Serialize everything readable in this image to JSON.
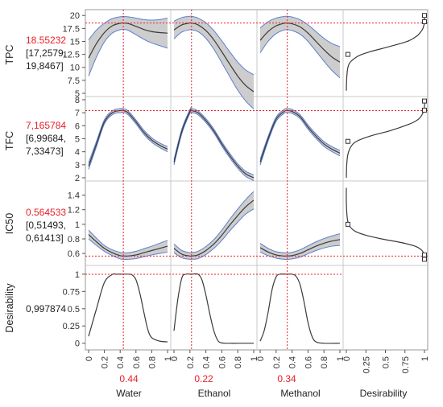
{
  "chart_data": {
    "type": "line",
    "title": "",
    "factors": [
      {
        "name": "Water",
        "value": "0.44",
        "current": 0.44
      },
      {
        "name": "Ethanol",
        "value": "0.22",
        "current": 0.22
      },
      {
        "name": "Methanol",
        "value": "0.34",
        "current": 0.34
      }
    ],
    "desirability_label": "Desirability",
    "x_ticks": [
      "0",
      "0.2",
      "0.4",
      "0.6",
      "0.8",
      "1"
    ],
    "desirability_ticks": [
      "0",
      "0.25",
      "0.5",
      "0.75",
      "1"
    ],
    "responses": [
      {
        "name": "TPC",
        "value": "18.55232",
        "ci_lines": [
          "[17,2579,",
          "19,8467]"
        ],
        "current": 18.55232,
        "ylim": [
          5,
          20.5
        ],
        "y_ticks": [
          "5",
          "7.5",
          "10",
          "12.5",
          "15",
          "17.5",
          "20"
        ],
        "y_tick_values": [
          5,
          7.5,
          10,
          12.5,
          15,
          17.5,
          20
        ],
        "profiles": [
          {
            "x": [
              0,
              0.1,
              0.2,
              0.3,
              0.4,
              0.44,
              0.5,
              0.6,
              0.7,
              0.8,
              0.9,
              1
            ],
            "y": [
              11.8,
              14.6,
              16.7,
              18.0,
              18.5,
              18.55,
              18.45,
              17.9,
              17.3,
              16.9,
              16.7,
              16.6
            ],
            "w": [
              3.5,
              2.6,
              1.8,
              1.4,
              1.25,
              1.25,
              1.3,
              1.6,
              1.9,
              2.2,
              2.5,
              2.9
            ]
          },
          {
            "x": [
              0,
              0.1,
              0.2,
              0.22,
              0.3,
              0.4,
              0.5,
              0.6,
              0.7,
              0.8,
              0.9,
              1
            ],
            "y": [
              17.2,
              18.2,
              18.55,
              18.55,
              18.2,
              17.1,
              15.3,
              13.0,
              10.6,
              8.3,
              6.5,
              5.3
            ],
            "w": [
              1.7,
              1.4,
              1.3,
              1.3,
              1.3,
              1.5,
              1.8,
              2.1,
              2.4,
              2.7,
              3.0,
              3.3
            ]
          },
          {
            "x": [
              0,
              0.1,
              0.2,
              0.3,
              0.34,
              0.4,
              0.5,
              0.6,
              0.7,
              0.8,
              0.9,
              1
            ],
            "y": [
              15.2,
              16.9,
              18.0,
              18.5,
              18.55,
              18.4,
              17.8,
              16.6,
              15.0,
              13.4,
              12.0,
              11.0
            ],
            "w": [
              2.4,
              1.9,
              1.5,
              1.3,
              1.3,
              1.3,
              1.4,
              1.6,
              1.9,
              2.2,
              2.6,
              3.0
            ]
          }
        ],
        "desirability": {
          "y": [
            5.5,
            8,
            10,
            11,
            12,
            12.5,
            13,
            14,
            15,
            16,
            17,
            17.5,
            18,
            18.5,
            19,
            20
          ],
          "d": [
            0,
            0.005,
            0.02,
            0.05,
            0.13,
            0.2,
            0.3,
            0.55,
            0.78,
            0.9,
            0.96,
            0.98,
            0.99,
            1,
            1,
            1
          ],
          "handles": [
            {
              "y": 20,
              "d": 1
            },
            {
              "y": 18.8,
              "d": 1
            },
            {
              "y": 12.5,
              "d": 0.02
            }
          ]
        }
      },
      {
        "name": "TFC",
        "value": "7,165784",
        "ci_lines": [
          "[6,99684,",
          "7,33473]"
        ],
        "current": 7.165784,
        "ylim": [
          2,
          8
        ],
        "y_ticks": [
          "2",
          "3",
          "4",
          "5",
          "6",
          "7",
          "8"
        ],
        "y_tick_values": [
          2,
          3,
          4,
          5,
          6,
          7,
          8
        ],
        "profiles": [
          {
            "x": [
              0,
              0.1,
              0.2,
              0.3,
              0.4,
              0.44,
              0.5,
              0.6,
              0.7,
              0.8,
              0.9,
              1
            ],
            "y": [
              2.9,
              4.6,
              6.3,
              7.0,
              7.17,
              7.17,
              7.0,
              6.3,
              5.5,
              4.9,
              4.5,
              4.2
            ],
            "w": [
              0.25,
              0.2,
              0.16,
              0.15,
              0.15,
              0.15,
              0.15,
              0.15,
              0.16,
              0.17,
              0.18,
              0.2
            ]
          },
          {
            "x": [
              0,
              0.1,
              0.2,
              0.22,
              0.3,
              0.4,
              0.5,
              0.6,
              0.7,
              0.8,
              0.9,
              1
            ],
            "y": [
              3.2,
              5.6,
              7.1,
              7.17,
              7.0,
              6.4,
              5.6,
              4.6,
              3.7,
              2.9,
              2.3,
              2.0
            ],
            "w": [
              0.2,
              0.17,
              0.15,
              0.15,
              0.15,
              0.15,
              0.15,
              0.16,
              0.17,
              0.18,
              0.2,
              0.22
            ]
          },
          {
            "x": [
              0,
              0.1,
              0.2,
              0.3,
              0.34,
              0.4,
              0.5,
              0.6,
              0.7,
              0.8,
              0.9,
              1
            ],
            "y": [
              3.2,
              5.0,
              6.5,
              7.1,
              7.17,
              7.1,
              6.7,
              5.9,
              5.2,
              4.6,
              4.2,
              3.9
            ],
            "w": [
              0.22,
              0.18,
              0.16,
              0.15,
              0.15,
              0.15,
              0.15,
              0.16,
              0.17,
              0.18,
              0.19,
              0.21
            ]
          }
        ],
        "desirability": {
          "y": [
            2,
            3,
            3.8,
            4.4,
            4.8,
            5.2,
            5.6,
            6.0,
            6.3,
            6.6,
            7.0,
            7.5,
            8
          ],
          "d": [
            0,
            0.005,
            0.02,
            0.06,
            0.13,
            0.3,
            0.55,
            0.75,
            0.87,
            0.94,
            0.98,
            1,
            1
          ],
          "handles": [
            {
              "y": 7.9,
              "d": 1
            },
            {
              "y": 7.2,
              "d": 1
            },
            {
              "y": 4.8,
              "d": 0.02
            }
          ]
        }
      },
      {
        "name": "IC50",
        "value": "0.564533",
        "ci_lines": [
          "[0,51493,",
          "0,61413]"
        ],
        "current": 0.564533,
        "ylim": [
          0.48,
          1.55
        ],
        "y_ticks": [
          "0.6",
          "0.8",
          "1",
          "1.2",
          "1.4"
        ],
        "y_tick_values": [
          0.6,
          0.8,
          1,
          1.2,
          1.4
        ],
        "profiles": [
          {
            "x": [
              0,
              0.1,
              0.2,
              0.3,
              0.4,
              0.44,
              0.5,
              0.6,
              0.7,
              0.8,
              0.9,
              1
            ],
            "y": [
              0.86,
              0.76,
              0.67,
              0.61,
              0.57,
              0.565,
              0.565,
              0.58,
              0.61,
              0.64,
              0.67,
              0.7
            ],
            "w": [
              0.06,
              0.05,
              0.04,
              0.04,
              0.045,
              0.045,
              0.045,
              0.05,
              0.055,
              0.06,
              0.07,
              0.08
            ]
          },
          {
            "x": [
              0,
              0.1,
              0.2,
              0.22,
              0.3,
              0.4,
              0.5,
              0.6,
              0.7,
              0.8,
              0.9,
              1
            ],
            "y": [
              0.67,
              0.59,
              0.565,
              0.565,
              0.58,
              0.64,
              0.73,
              0.85,
              0.99,
              1.12,
              1.24,
              1.33
            ],
            "w": [
              0.06,
              0.05,
              0.045,
              0.045,
              0.05,
              0.055,
              0.06,
              0.07,
              0.08,
              0.09,
              0.1,
              0.12
            ]
          },
          {
            "x": [
              0,
              0.1,
              0.2,
              0.3,
              0.34,
              0.4,
              0.5,
              0.6,
              0.7,
              0.8,
              0.9,
              1
            ],
            "y": [
              0.68,
              0.62,
              0.58,
              0.565,
              0.565,
              0.57,
              0.6,
              0.65,
              0.7,
              0.74,
              0.77,
              0.79
            ],
            "w": [
              0.06,
              0.05,
              0.045,
              0.045,
              0.045,
              0.045,
              0.05,
              0.055,
              0.06,
              0.065,
              0.07,
              0.08
            ]
          }
        ],
        "desirability": {
          "y": [
            0.5,
            0.55,
            0.6,
            0.65,
            0.7,
            0.75,
            0.8,
            0.85,
            0.9,
            0.95,
            1.0,
            1.1,
            1.3,
            1.5
          ],
          "d": [
            1,
            1,
            0.99,
            0.96,
            0.88,
            0.7,
            0.45,
            0.25,
            0.12,
            0.06,
            0.03,
            0.01,
            0,
            0
          ],
          "handles": [
            {
              "y": 0.58,
              "d": 1
            },
            {
              "y": 0.52,
              "d": 1
            },
            {
              "y": 1.0,
              "d": 0.02
            }
          ]
        }
      }
    ],
    "overall": {
      "name": "Desirability",
      "value": "0,997874",
      "current": 0.997874,
      "ylim": [
        -0.05,
        1.08
      ],
      "y_ticks": [
        "0",
        "0.25",
        "0.5",
        "0.75",
        "1"
      ],
      "y_tick_values": [
        0,
        0.25,
        0.5,
        0.75,
        1
      ],
      "profiles": [
        {
          "x": [
            0,
            0.1,
            0.2,
            0.3,
            0.35,
            0.44,
            0.5,
            0.55,
            0.6,
            0.65,
            0.7,
            0.75,
            0.8,
            0.9,
            1
          ],
          "y": [
            0.1,
            0.5,
            0.88,
            0.995,
            1,
            1,
            1,
            0.99,
            0.92,
            0.72,
            0.45,
            0.2,
            0.08,
            0.03,
            0.02
          ]
        },
        {
          "x": [
            0,
            0.05,
            0.1,
            0.15,
            0.2,
            0.22,
            0.3,
            0.35,
            0.4,
            0.45,
            0.5,
            0.55,
            0.6,
            0.7,
            0.8,
            1
          ],
          "y": [
            0.18,
            0.65,
            0.95,
            1,
            1,
            1,
            1,
            0.92,
            0.7,
            0.42,
            0.18,
            0.04,
            0.005,
            0,
            0,
            0
          ]
        },
        {
          "x": [
            0,
            0.05,
            0.1,
            0.15,
            0.2,
            0.25,
            0.34,
            0.4,
            0.45,
            0.5,
            0.55,
            0.6,
            0.65,
            0.7,
            0.8,
            1
          ],
          "y": [
            0.03,
            0.18,
            0.45,
            0.78,
            0.96,
            1,
            1,
            1,
            0.97,
            0.85,
            0.6,
            0.3,
            0.1,
            0.02,
            0,
            0
          ]
        }
      ]
    },
    "colors": {
      "band": "#c8c8c8",
      "band_edge": "#5c7fd0",
      "curve": "#3a3a3a",
      "crosshair": "#e8202a",
      "frame": "#9a9a9a",
      "grid": "#c8c8c8"
    }
  }
}
